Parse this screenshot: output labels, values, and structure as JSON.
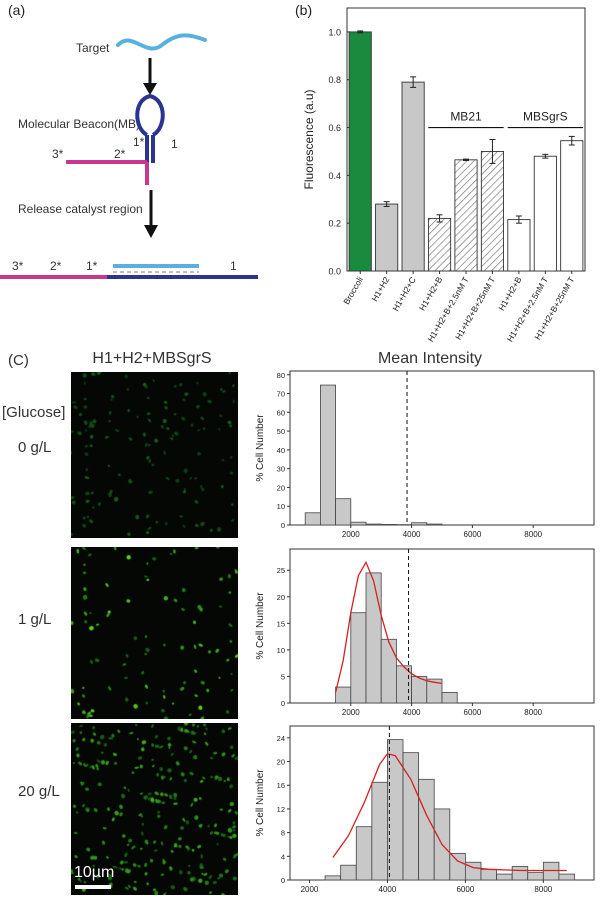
{
  "panel_a": {
    "label": "(a)",
    "target_label": "Target",
    "mb_label": "Molecular Beacon(MB)",
    "stem_labels": [
      "3*",
      "2*",
      "1*",
      "1"
    ],
    "release_label": "Release catalyst region",
    "bottom_labels": [
      "3*",
      "2*",
      "1*",
      "1"
    ],
    "colors": {
      "target": "#5ab0de",
      "beacon": "#2a3590",
      "pink": "#c8378f",
      "arrow": "#111111"
    }
  },
  "panel_b": {
    "label": "(b)",
    "group_labels": [
      "MB21",
      "MBSgrS"
    ]
  },
  "panel_c": {
    "label": "(C)",
    "image_header": "H1+H2+MBSgrS",
    "hist_header": "Mean Intensity",
    "glucose_label": "[Glucose]",
    "rows": [
      {
        "condition": "0 g/L",
        "density": 0.5,
        "brightness": 0.35
      },
      {
        "condition": "1 g/L",
        "density": 0.35,
        "brightness": 0.85
      },
      {
        "condition": "20 g/L",
        "density": 1.0,
        "brightness": 0.7
      }
    ],
    "scale_bar": "10µm"
  },
  "chart_data": [
    {
      "type": "bar",
      "ylabel": "Fluorescence (a.u)",
      "ylim": [
        0,
        1.1
      ],
      "yticks": [
        "0.0",
        "0.2",
        "0.4",
        "0.6",
        "0.8",
        "1.0"
      ],
      "categories": [
        "Broccoli",
        "H1+H2",
        "H1+H2+C",
        "H1+H2+B",
        "H1+H2+B+2.5nM T",
        "H1+H2+B+25nM T",
        "H1+H2+B",
        "H1+H2+B+2.5nM T",
        "H1+H2+B+25nM T"
      ],
      "values": [
        1.0,
        0.28,
        0.79,
        0.22,
        0.465,
        0.5,
        0.215,
        0.48,
        0.545
      ],
      "errors": [
        0.004,
        0.01,
        0.022,
        0.015,
        0.003,
        0.05,
        0.015,
        0.008,
        0.018
      ],
      "fills": [
        "green",
        "gray",
        "gray",
        "hatched",
        "hatched",
        "hatched",
        "white",
        "white",
        "white"
      ],
      "colors": {
        "green": "#1a8a3e",
        "gray": "#c8c8c8",
        "hatch": "#7a7a7a"
      }
    },
    {
      "type": "bar",
      "ylabel": "% Cell Number",
      "xlim": [
        0,
        10000
      ],
      "ylim": [
        0,
        82
      ],
      "xticks": [
        "2000",
        "4000",
        "6000",
        "8000"
      ],
      "yticks": [
        "0",
        "10",
        "20",
        "30",
        "40",
        "50",
        "60",
        "70",
        "80"
      ],
      "bin_width": 500,
      "bin_starts": [
        500,
        1000,
        1500,
        2000,
        2500,
        3000,
        3500,
        4000,
        4500
      ],
      "values": [
        6.5,
        74.5,
        14,
        1.5,
        0.5,
        0.3,
        0.2,
        1.2,
        0.5
      ],
      "mean_line_x": 3850
    },
    {
      "type": "bar",
      "ylabel": "% Cell Number",
      "xlim": [
        0,
        10000
      ],
      "ylim": [
        0,
        29
      ],
      "xticks": [
        "2000",
        "4000",
        "6000",
        "8000"
      ],
      "yticks": [
        "0",
        "5",
        "10",
        "15",
        "20",
        "25"
      ],
      "bin_width": 500,
      "bin_starts": [
        1500,
        2000,
        2500,
        3000,
        3500,
        4000,
        4500,
        5000
      ],
      "values": [
        3,
        17,
        24.5,
        12,
        7,
        5,
        4.5,
        2
      ],
      "fit_x": [
        1500,
        1750,
        2000,
        2250,
        2500,
        2750,
        3000,
        3250,
        3500,
        3750,
        4000,
        4250,
        4500,
        4750,
        5000
      ],
      "fit_y": [
        2,
        8,
        17,
        24,
        26.5,
        23,
        16.5,
        11.5,
        8.5,
        6.8,
        5.5,
        4.7,
        4.2,
        3.9,
        3.7
      ],
      "mean_line_x": 3900
    },
    {
      "type": "bar",
      "ylabel": "% Cell Number",
      "xlim": [
        1500,
        9300
      ],
      "ylim": [
        0,
        26
      ],
      "xticks": [
        "2000",
        "4000",
        "6000",
        "8000"
      ],
      "yticks": [
        "0",
        "4",
        "8",
        "12",
        "16",
        "20",
        "24"
      ],
      "bin_width": 400,
      "bin_starts": [
        2400,
        2800,
        3200,
        3600,
        4000,
        4400,
        4800,
        5200,
        5600,
        6000,
        6400,
        6800,
        7200,
        7600,
        8000,
        8400
      ],
      "values": [
        0.7,
        2.5,
        9,
        16.5,
        23.7,
        21.5,
        17,
        12,
        4.5,
        3,
        1.8,
        1,
        2.3,
        1.3,
        3,
        1
      ],
      "fit_x": [
        2600,
        3000,
        3400,
        3800,
        4000,
        4200,
        4600,
        5000,
        5400,
        5800,
        6200,
        6600,
        7000,
        7400,
        7800,
        8200,
        8600
      ],
      "fit_y": [
        3.8,
        7.5,
        13,
        19.5,
        21.3,
        21,
        17,
        11,
        6,
        3.2,
        2.1,
        1.8,
        1.7,
        1.6,
        1.6,
        1.6,
        1.6
      ],
      "mean_line_x": 4050
    }
  ]
}
